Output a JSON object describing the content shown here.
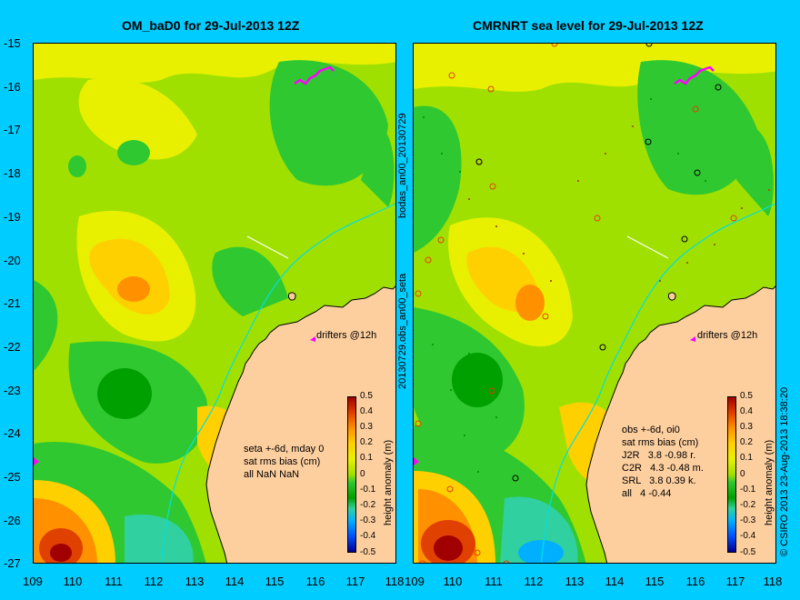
{
  "left_panel": {
    "title": "OM_baD0 for 29-Jul-2013 12Z",
    "stats_lines": [
      "seta +-6d, mday 0",
      "sat rms bias (cm)",
      "all NaN NaN"
    ],
    "drifters_label": "drifters @12h"
  },
  "right_panel": {
    "title": "CMRNRT sea level  for 29-Jul-2013 12Z",
    "stats_lines": [
      "obs +-6d, oi0",
      "sat rms bias (cm)",
      "J2R   3.8 -0.98 r.",
      "C2R   4.3 -0.48 m.",
      "SRL   3.8 0.39 k.",
      "all   4 -0.44"
    ],
    "drifters_label": "drifters @12h"
  },
  "side_labels": {
    "middle_top": "bodas_an00_20130729",
    "middle_bottom": "20130729.obs_an00_seta",
    "right_edge": "© CSIRO 2013   23-Aug-2013 18:38:20"
  },
  "lat_ticks": [
    "-15",
    "-16",
    "-17",
    "-18",
    "-19",
    "-20",
    "-21",
    "-22",
    "-23",
    "-24",
    "-25",
    "-26",
    "-27"
  ],
  "lon_ticks": [
    "109",
    "110",
    "111",
    "112",
    "113",
    "114",
    "115",
    "116",
    "117",
    "118"
  ],
  "colorbar": {
    "label": "height anomaly (m)",
    "ticks": [
      "0.5",
      "0.4",
      "0.3",
      "0.2",
      "0.1",
      "0",
      "-0.1",
      "-0.2",
      "-0.3",
      "-0.4",
      "-0.5"
    ],
    "colors": [
      "#00008f",
      "#0050ff",
      "#00b0ff",
      "#30d0a0",
      "#00a000",
      "#30c830",
      "#a0e000",
      "#e8f000",
      "#ffd000",
      "#ff9000",
      "#e04000",
      "#a00000"
    ]
  },
  "map_colors": {
    "land": "#fdcf9f",
    "coast": "#000000",
    "isobath": "#00e0e0",
    "drifter": "#ff00ff"
  }
}
